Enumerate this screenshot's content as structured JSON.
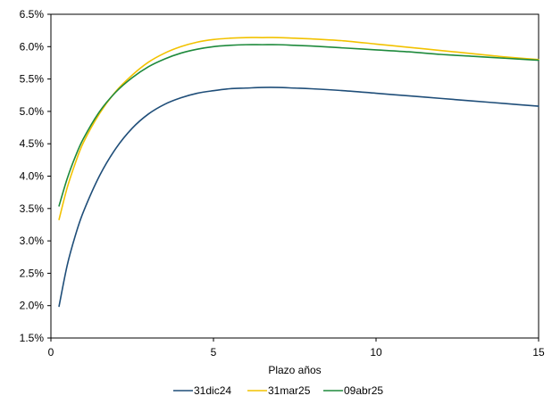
{
  "chart_data": {
    "type": "line",
    "title": "",
    "xlabel": "Plazo años",
    "ylabel": "",
    "xlim": [
      0,
      15
    ],
    "ylim": [
      0.015,
      0.065
    ],
    "x_ticks": [
      0,
      5,
      10,
      15
    ],
    "x_tick_labels": [
      "0",
      "5",
      "10",
      "15"
    ],
    "y_ticks": [
      0.015,
      0.02,
      0.025,
      0.03,
      0.035,
      0.04,
      0.045,
      0.05,
      0.055,
      0.06,
      0.065
    ],
    "y_tick_labels": [
      "1.5%",
      "2.0%",
      "2.5%",
      "3.0%",
      "3.5%",
      "4.0%",
      "4.5%",
      "5.0%",
      "5.5%",
      "6.0%",
      "6.5%"
    ],
    "grid": false,
    "legend": "bottom",
    "series": [
      {
        "name": "31dic24",
        "color": "#1F4E79",
        "x": [
          0.25,
          0.5,
          0.75,
          1,
          1.5,
          2,
          2.5,
          3,
          3.5,
          4,
          4.5,
          5,
          5.5,
          6,
          6.5,
          7,
          7.5,
          8,
          9,
          10,
          11,
          12,
          13,
          14,
          15
        ],
        "y": [
          0.0199,
          0.0262,
          0.0308,
          0.0345,
          0.0401,
          0.0443,
          0.0474,
          0.0496,
          0.0511,
          0.0521,
          0.0528,
          0.0532,
          0.0535,
          0.0536,
          0.0537,
          0.0537,
          0.0536,
          0.0535,
          0.0532,
          0.0528,
          0.0524,
          0.052,
          0.0516,
          0.0512,
          0.0508
        ]
      },
      {
        "name": "31mar25",
        "color": "#F2C200",
        "x": [
          0.25,
          0.5,
          0.75,
          1,
          1.5,
          2,
          2.5,
          3,
          3.5,
          4,
          4.5,
          5,
          5.5,
          6,
          6.5,
          7,
          7.5,
          8,
          9,
          10,
          11,
          12,
          13,
          14,
          15
        ],
        "y": [
          0.0333,
          0.0382,
          0.042,
          0.0452,
          0.0497,
          0.0531,
          0.0556,
          0.0576,
          0.059,
          0.06,
          0.0607,
          0.0611,
          0.0613,
          0.0614,
          0.0614,
          0.0614,
          0.0613,
          0.0612,
          0.0609,
          0.0604,
          0.0599,
          0.0594,
          0.0589,
          0.0584,
          0.058
        ]
      },
      {
        "name": "09abr25",
        "color": "#1E8A3C",
        "x": [
          0.25,
          0.5,
          0.75,
          1,
          1.5,
          2,
          2.5,
          3,
          3.5,
          4,
          4.5,
          5,
          5.5,
          6,
          6.5,
          7,
          7.5,
          8,
          9,
          10,
          11,
          12,
          13,
          14,
          15
        ],
        "y": [
          0.0354,
          0.0396,
          0.043,
          0.0458,
          0.05,
          0.053,
          0.0552,
          0.0569,
          0.0581,
          0.059,
          0.0596,
          0.06,
          0.0602,
          0.0603,
          0.0603,
          0.0603,
          0.0602,
          0.0601,
          0.0598,
          0.0595,
          0.0592,
          0.0588,
          0.0585,
          0.0582,
          0.0579
        ]
      }
    ]
  }
}
